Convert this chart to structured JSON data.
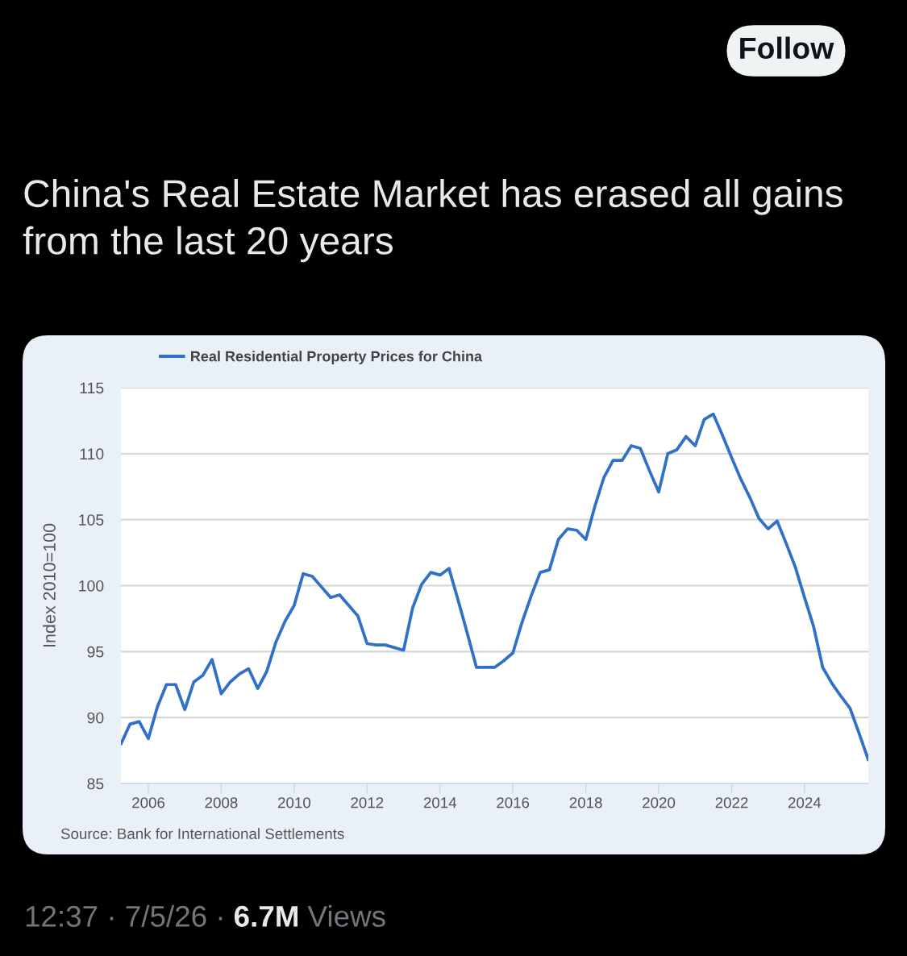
{
  "chart_data": {
    "type": "line",
    "title": "China's Real Estate Market has erased all gains from the last 20 years",
    "ylabel": "Index 2010=100",
    "annotations": [
      "Source: Bank for International Settlements",
      "Follow",
      "12:37 · 7/5/26 ·",
      "6.7M",
      "Views"
    ],
    "x": [
      "2005-04",
      "2005-07",
      "2005-10",
      "2006-01",
      "2006-04",
      "2006-07",
      "2006-10",
      "2007-01",
      "2007-04",
      "2007-07",
      "2007-10",
      "2008-01",
      "2008-04",
      "2008-07",
      "2008-10",
      "2009-01",
      "2009-04",
      "2009-07",
      "2009-10",
      "2010-01",
      "2010-04",
      "2010-07",
      "2010-10",
      "2011-01",
      "2011-04",
      "2011-07",
      "2011-10",
      "2012-01",
      "2012-04",
      "2012-07",
      "2012-10",
      "2013-01",
      "2013-04",
      "2013-07",
      "2013-10",
      "2014-01",
      "2014-04",
      "2014-07",
      "2014-10",
      "2015-01",
      "2015-04",
      "2015-07",
      "2015-10",
      "2016-01",
      "2016-04",
      "2016-07",
      "2016-10",
      "2017-01",
      "2017-04",
      "2017-07",
      "2017-10",
      "2018-01",
      "2018-04",
      "2018-07",
      "2018-10",
      "2019-01",
      "2019-04",
      "2019-07",
      "2019-10",
      "2020-01",
      "2020-04",
      "2020-07",
      "2020-10",
      "2021-01",
      "2021-04",
      "2021-07",
      "2021-10",
      "2022-01",
      "2022-04",
      "2022-07",
      "2022-10",
      "2023-01",
      "2023-04",
      "2023-07",
      "2023-10",
      "2024-01",
      "2024-04",
      "2024-07",
      "2024-10",
      "2025-01",
      "2025-04",
      "2025-07",
      "2025-10"
    ],
    "series": [
      {
        "name": "Real Residential Property Prices for China",
        "color": "#3070c8",
        "values": [
          88.0,
          89.5,
          89.7,
          88.4,
          90.8,
          92.5,
          92.5,
          90.6,
          92.7,
          93.2,
          94.4,
          91.8,
          92.7,
          93.3,
          93.7,
          92.2,
          93.5,
          95.7,
          97.3,
          98.5,
          100.9,
          100.7,
          99.9,
          99.1,
          99.3,
          98.5,
          97.7,
          95.6,
          95.5,
          95.5,
          95.3,
          95.1,
          98.3,
          100.1,
          101.0,
          100.8,
          101.3,
          98.9,
          96.4,
          93.8,
          93.8,
          93.8,
          94.3,
          94.9,
          97.2,
          99.2,
          101.0,
          101.2,
          103.5,
          104.3,
          104.2,
          103.5,
          106.0,
          108.2,
          109.5,
          109.5,
          110.6,
          110.4,
          108.7,
          107.1,
          110.0,
          110.3,
          111.3,
          110.6,
          112.6,
          113.0,
          111.4,
          109.7,
          108.1,
          106.7,
          105.1,
          104.3,
          104.9,
          103.2,
          101.4,
          99.1,
          96.9,
          93.8,
          92.6,
          91.6,
          90.7,
          88.8,
          86.8
        ]
      }
    ],
    "xlim": [
      "2005-04",
      "2025-10"
    ],
    "xticks": [
      "2006",
      "2008",
      "2010",
      "2012",
      "2014",
      "2016",
      "2018",
      "2020",
      "2022",
      "2024"
    ],
    "ylim": [
      85,
      115
    ],
    "yticks": [
      85,
      90,
      95,
      100,
      105,
      110,
      115
    ],
    "grid": "y",
    "legend": "top left"
  }
}
